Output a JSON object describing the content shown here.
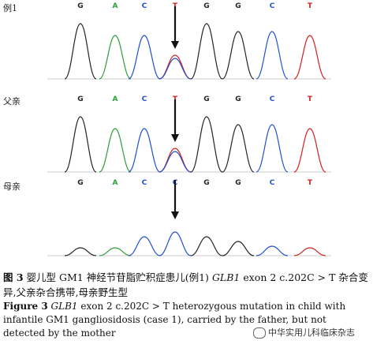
{
  "colors": {
    "G": "#222222",
    "A": "#2e9e3a",
    "C": "#1f4fd0",
    "T": "#d42020"
  },
  "panels": [
    {
      "label": "例1",
      "bases": [
        "G",
        "A",
        "C",
        "T",
        "G",
        "G",
        "C",
        "T"
      ],
      "arrow_at": 3
    },
    {
      "label": "父亲",
      "bases": [
        "G",
        "A",
        "C",
        "T",
        "G",
        "G",
        "C",
        "T"
      ],
      "arrow_at": 3
    },
    {
      "label": "母亲",
      "bases": [
        "G",
        "A",
        "C",
        "C",
        "G",
        "G",
        "C",
        "T"
      ],
      "arrow_at": 3
    }
  ],
  "caption": {
    "cn_label": "图 3",
    "cn_pre": "婴儿型 GM1 神经节苷脂贮积症患儿(例1)",
    "cn_gene": "GLB1",
    "cn_post": "exon 2 c.202C > T 杂合变异,父亲杂合携带,母亲野生型",
    "en_label": "Figure 3",
    "en_gene": "GLB1",
    "en_post": "exon 2 c.202C > T heterozygous mutation in child with infantile GM1 gangliosidosis (case 1), carried by the father, but not detected by the mother"
  },
  "watermark": "中华实用儿科临床杂志"
}
